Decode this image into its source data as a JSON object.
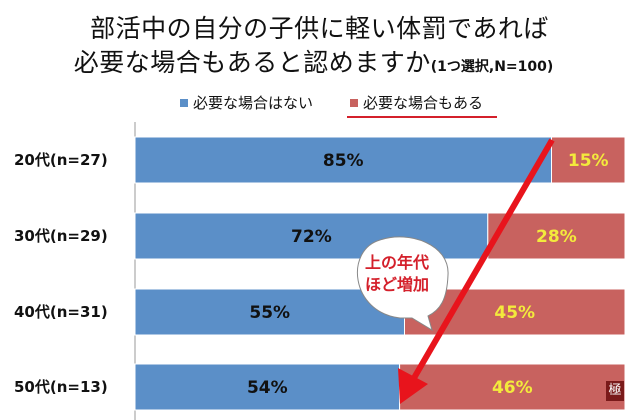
{
  "chart_data": {
    "type": "bar",
    "orientation": "horizontal",
    "stacked": "100%",
    "title_line1": "部活中の自分の子供に軽い体罰であれば",
    "title_line2": "必要な場合もあると認めますか",
    "title_note": "(1つ選択,N=100)",
    "categories": [
      "20代(n=27)",
      "30代(n=29)",
      "40代(n=31)",
      "50代(n=13)"
    ],
    "series": [
      {
        "name": "必要な場合はない",
        "values": [
          85,
          72,
          55,
          54
        ],
        "labels": [
          "85%",
          "72%",
          "55%",
          "54%"
        ],
        "color": "#5b8fc8",
        "label_color": "#111111"
      },
      {
        "name": "必要な場合もある",
        "values": [
          15,
          28,
          45,
          46
        ],
        "labels": [
          "15%",
          "28%",
          "45%",
          "46%"
        ],
        "color": "#c8625f",
        "label_color": "#f3ea3c"
      }
    ],
    "xlim": [
      0,
      100
    ],
    "grid": false,
    "legend_position": "top",
    "annotation": {
      "line1": "上の年代",
      "line2": "ほど増加",
      "color": "#d4202b"
    },
    "arrow_color": "#e8141c"
  },
  "stamp": "極"
}
